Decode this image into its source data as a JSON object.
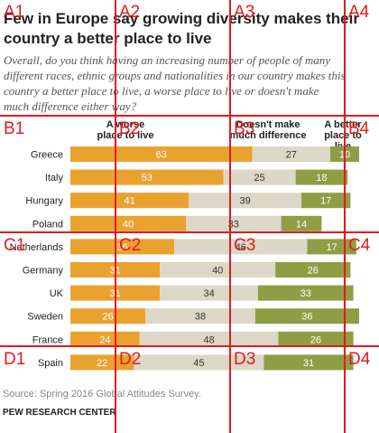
{
  "title": "Few in Europe say growing diversity makes their country a better place to live",
  "subtitle": "Overall, do you think having an increasing number of people of many different races, ethnic groups and nationalities in our country makes this country a better place to live, a worse place to live or doesn't make much difference either way?",
  "column_headers": {
    "worse": "A worse place to live",
    "no_difference": "Doesn't make much difference",
    "better": "A better place to live"
  },
  "source": "Source: Spring 2016 Global Attitudes Survey.",
  "organization": "PEW RESEARCH CENTER",
  "colors": {
    "worse": "#eaa22f",
    "no_difference": "#dcd8c8",
    "better": "#8f9e44",
    "grid": "#e41a1c"
  },
  "grid_labels": [
    "A1",
    "A2",
    "A3",
    "A4",
    "B1",
    "B2",
    "B3",
    "B4",
    "C1",
    "C2",
    "C3",
    "C4",
    "D1",
    "D2",
    "D3",
    "D4"
  ],
  "chart_data": {
    "type": "bar",
    "stacked": true,
    "orientation": "horizontal",
    "categories": [
      "Greece",
      "Italy",
      "Hungary",
      "Poland",
      "Netherlands",
      "Germany",
      "UK",
      "Sweden",
      "France",
      "Spain"
    ],
    "series": [
      {
        "name": "A worse place to live",
        "values": [
          63,
          53,
          41,
          40,
          36,
          31,
          31,
          26,
          24,
          22
        ]
      },
      {
        "name": "Doesn't make much difference",
        "values": [
          27,
          25,
          39,
          33,
          46,
          40,
          34,
          38,
          48,
          45
        ]
      },
      {
        "name": "A better place to live",
        "values": [
          10,
          18,
          17,
          14,
          17,
          26,
          33,
          36,
          26,
          31
        ]
      }
    ],
    "xlim": [
      0,
      100
    ]
  }
}
